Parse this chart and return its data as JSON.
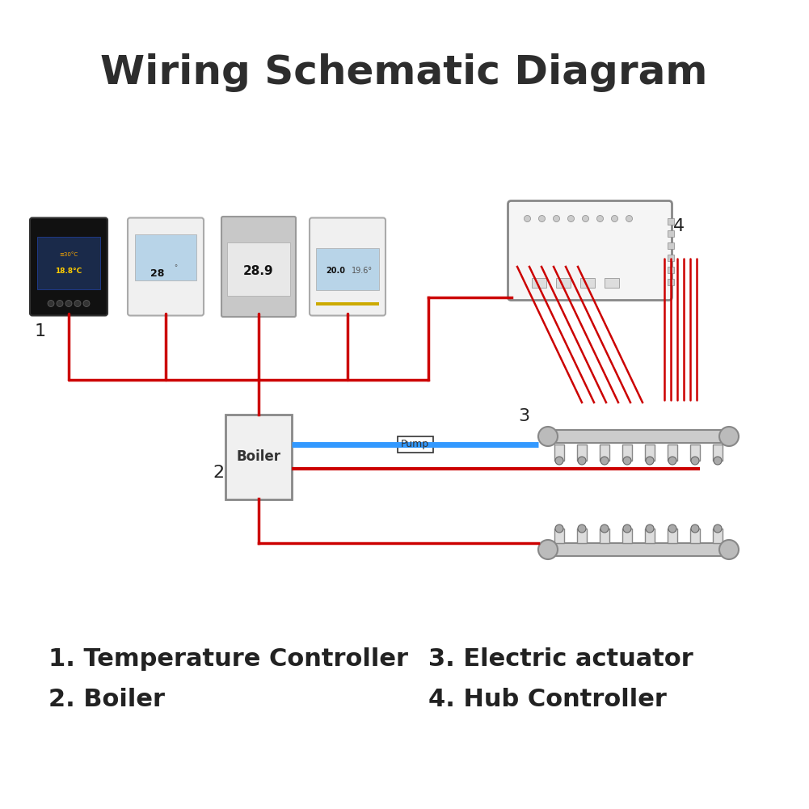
{
  "title": "Wiring Schematic Diagram",
  "title_fontsize": 36,
  "title_color": "#2d2d2d",
  "bg_color": "#ffffff",
  "label1": "1. Temperature Controller",
  "label2": "2. Boiler",
  "label3": "3. Electric actuator",
  "label4": "4. Hub Controller",
  "label_fontsize": 22,
  "pump_label": "Pump",
  "number_labels": [
    "1",
    "2",
    "3",
    "4"
  ],
  "red_color": "#cc0000",
  "blue_color": "#3399ff",
  "wire_lw": 2.5
}
